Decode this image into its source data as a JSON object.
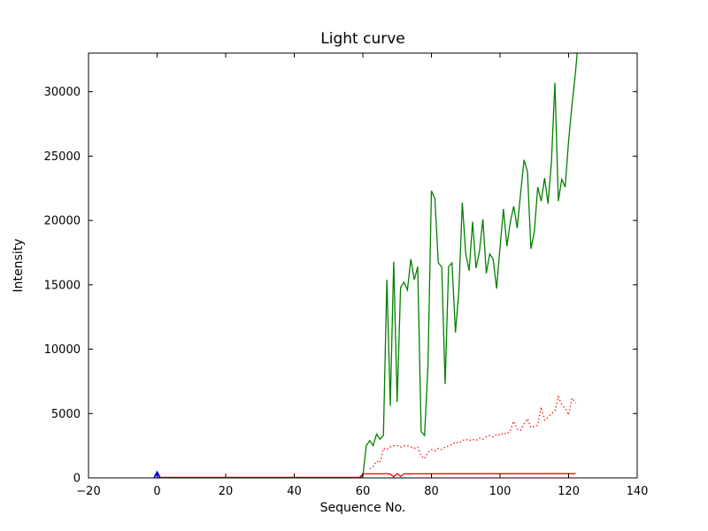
{
  "chart_data": {
    "type": "line",
    "title": "Light curve",
    "xlabel": "Sequence No.",
    "ylabel": "Intensity",
    "xlim": [
      -20,
      140
    ],
    "ylim": [
      0,
      33000
    ],
    "xtick_values": [
      -20,
      0,
      20,
      40,
      60,
      80,
      100,
      120,
      140
    ],
    "xtick_labels": [
      "−20",
      "0",
      "20",
      "40",
      "60",
      "80",
      "100",
      "120",
      "140"
    ],
    "ytick_values": [
      0,
      5000,
      10000,
      15000,
      20000,
      25000,
      30000
    ],
    "ytick_labels": [
      "0",
      "5000",
      "10000",
      "15000",
      "20000",
      "25000",
      "30000"
    ],
    "grid": false,
    "legend": null,
    "background": "#ffffff",
    "axes_color": "#000000",
    "series": [
      {
        "name": "green-solid-line",
        "color": "#008000",
        "line_style": "solid",
        "line_width": 1.3,
        "points": [
          [
            0,
            30
          ],
          [
            59,
            30
          ],
          [
            60,
            150
          ],
          [
            61,
            2500
          ],
          [
            62,
            2900
          ],
          [
            63,
            2500
          ],
          [
            64,
            3400
          ],
          [
            65,
            3000
          ],
          [
            66,
            3300
          ],
          [
            67,
            15400
          ],
          [
            68,
            5600
          ],
          [
            69,
            16800
          ],
          [
            70,
            5900
          ],
          [
            71,
            14800
          ],
          [
            72,
            15200
          ],
          [
            73,
            14600
          ],
          [
            74,
            17000
          ],
          [
            75,
            15400
          ],
          [
            76,
            16400
          ],
          [
            77,
            3600
          ],
          [
            78,
            3300
          ],
          [
            79,
            8800
          ],
          [
            80,
            22300
          ],
          [
            81,
            21700
          ],
          [
            82,
            16700
          ],
          [
            83,
            16400
          ],
          [
            84,
            7300
          ],
          [
            85,
            16400
          ],
          [
            86,
            16700
          ],
          [
            87,
            11300
          ],
          [
            88,
            14500
          ],
          [
            89,
            21400
          ],
          [
            90,
            17400
          ],
          [
            91,
            16100
          ],
          [
            92,
            19900
          ],
          [
            93,
            16300
          ],
          [
            94,
            17600
          ],
          [
            95,
            20100
          ],
          [
            96,
            15900
          ],
          [
            97,
            17400
          ],
          [
            98,
            17000
          ],
          [
            99,
            14700
          ],
          [
            100,
            17900
          ],
          [
            101,
            20900
          ],
          [
            102,
            18000
          ],
          [
            103,
            19900
          ],
          [
            104,
            21100
          ],
          [
            105,
            19400
          ],
          [
            106,
            22100
          ],
          [
            107,
            24700
          ],
          [
            108,
            23800
          ],
          [
            109,
            17800
          ],
          [
            110,
            19100
          ],
          [
            111,
            22600
          ],
          [
            112,
            21500
          ],
          [
            113,
            23300
          ],
          [
            114,
            21300
          ],
          [
            115,
            24600
          ],
          [
            116,
            30700
          ],
          [
            117,
            21500
          ],
          [
            118,
            23200
          ],
          [
            119,
            22600
          ],
          [
            120,
            26200
          ],
          [
            121,
            29000
          ],
          [
            122,
            31500
          ],
          [
            123,
            34500
          ]
        ]
      },
      {
        "name": "red-dotted-line",
        "color": "#ff0000",
        "line_style": "dotted",
        "line_width": 1.2,
        "points": [
          [
            62,
            700
          ],
          [
            63,
            900
          ],
          [
            64,
            1300
          ],
          [
            65,
            1200
          ],
          [
            66,
            2300
          ],
          [
            67,
            2200
          ],
          [
            68,
            2400
          ],
          [
            69,
            2500
          ],
          [
            70,
            2500
          ],
          [
            71,
            2400
          ],
          [
            72,
            2500
          ],
          [
            73,
            2500
          ],
          [
            74,
            2400
          ],
          [
            75,
            2300
          ],
          [
            76,
            2400
          ],
          [
            77,
            1700
          ],
          [
            78,
            1500
          ],
          [
            79,
            2000
          ],
          [
            80,
            2200
          ],
          [
            81,
            2100
          ],
          [
            82,
            2300
          ],
          [
            83,
            2200
          ],
          [
            84,
            2400
          ],
          [
            85,
            2500
          ],
          [
            86,
            2600
          ],
          [
            87,
            2800
          ],
          [
            88,
            2700
          ],
          [
            89,
            2900
          ],
          [
            90,
            3000
          ],
          [
            91,
            2900
          ],
          [
            92,
            3000
          ],
          [
            93,
            2900
          ],
          [
            94,
            3100
          ],
          [
            95,
            3000
          ],
          [
            96,
            3200
          ],
          [
            97,
            3300
          ],
          [
            98,
            3200
          ],
          [
            99,
            3400
          ],
          [
            100,
            3300
          ],
          [
            101,
            3500
          ],
          [
            102,
            3400
          ],
          [
            103,
            3700
          ],
          [
            104,
            4400
          ],
          [
            105,
            3800
          ],
          [
            106,
            3700
          ],
          [
            107,
            4200
          ],
          [
            108,
            4600
          ],
          [
            109,
            3900
          ],
          [
            110,
            4000
          ],
          [
            111,
            4100
          ],
          [
            112,
            5500
          ],
          [
            113,
            4500
          ],
          [
            114,
            4700
          ],
          [
            115,
            5000
          ],
          [
            116,
            5200
          ],
          [
            117,
            6300
          ],
          [
            118,
            5700
          ],
          [
            119,
            5400
          ],
          [
            120,
            4900
          ],
          [
            121,
            6200
          ],
          [
            122,
            5800
          ]
        ]
      },
      {
        "name": "red-solid-line",
        "color": "#ff0000",
        "line_style": "solid",
        "line_width": 1.3,
        "points": [
          [
            0,
            30
          ],
          [
            59,
            30
          ],
          [
            60,
            320
          ],
          [
            67,
            320
          ],
          [
            68,
            300
          ],
          [
            69,
            80
          ],
          [
            70,
            330
          ],
          [
            71,
            120
          ],
          [
            72,
            320
          ],
          [
            122,
            330
          ]
        ]
      },
      {
        "name": "blue-marker-line",
        "color": "#0000ff",
        "line_style": "solid",
        "line_width": 2,
        "points": [
          [
            -0.8,
            40
          ],
          [
            0,
            430
          ],
          [
            0.8,
            40
          ]
        ]
      }
    ]
  }
}
